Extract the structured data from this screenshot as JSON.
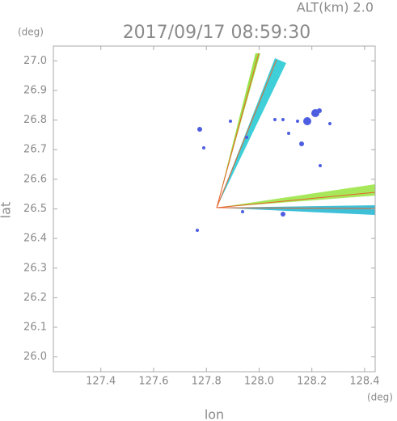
{
  "chart_data": {
    "type": "radar-ppi",
    "title": "2017/09/17 08:59:30",
    "altitude_label": "ALT(km) 2.0",
    "x_label": "lon",
    "y_label": "lat",
    "x_unit": "(deg)",
    "y_unit": "(deg)",
    "xlim": [
      127.22,
      128.44
    ],
    "ylim": [
      25.95,
      27.05
    ],
    "xticks": [
      127.4,
      127.6,
      127.8,
      {
        "value": 128,
        "label": "128.0"
      },
      128.2,
      128.4
    ],
    "yticks": [
      {
        "value": 26,
        "label": "26.0"
      },
      26.1,
      26.2,
      26.3,
      26.4,
      26.5,
      26.6,
      26.7,
      26.8,
      26.9,
      {
        "value": 27,
        "label": "27.0"
      }
    ]
  }
}
